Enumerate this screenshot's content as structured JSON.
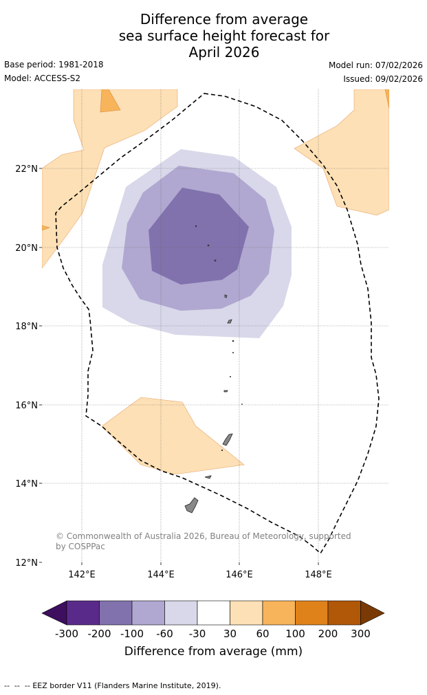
{
  "title": {
    "line1": "Difference from average",
    "line2": "sea surface height forecast for",
    "line3": "April 2026"
  },
  "meta": {
    "base_period": "Base period: 1981-2018",
    "model": "Model: ACCESS-S2",
    "model_run": "Model run: 07/02/2026",
    "issued": "Issued: 09/02/2026"
  },
  "map": {
    "lat_labels": [
      "22°N",
      "20°N",
      "18°N",
      "16°N",
      "14°N",
      "12°N"
    ],
    "lon_labels": [
      "142°E",
      "144°E",
      "146°E",
      "148°E"
    ],
    "lat_range": [
      12,
      23.9
    ],
    "lon_range": [
      141,
      149.8
    ],
    "copyright_line1": "© Commonwealth of Australia 2026, Bureau of Meteorology, supported",
    "copyright_line2": "by COSPPac"
  },
  "colorbar": {
    "ticks": [
      "-300",
      "-200",
      "-100",
      "-60",
      "-30",
      "30",
      "60",
      "100",
      "200",
      "300"
    ],
    "colors": [
      "#3d0f5e",
      "#5a2a8a",
      "#8172ad",
      "#b0a8d0",
      "#d8d8ea",
      "#ffffff",
      "#fde0b5",
      "#f8b45a",
      "#e0821a",
      "#b05708",
      "#7a3a05"
    ],
    "label": "Difference from average (mm)"
  },
  "legend": {
    "eez": "EEZ border V11 (Flanders Marine Institute, 2019)."
  }
}
